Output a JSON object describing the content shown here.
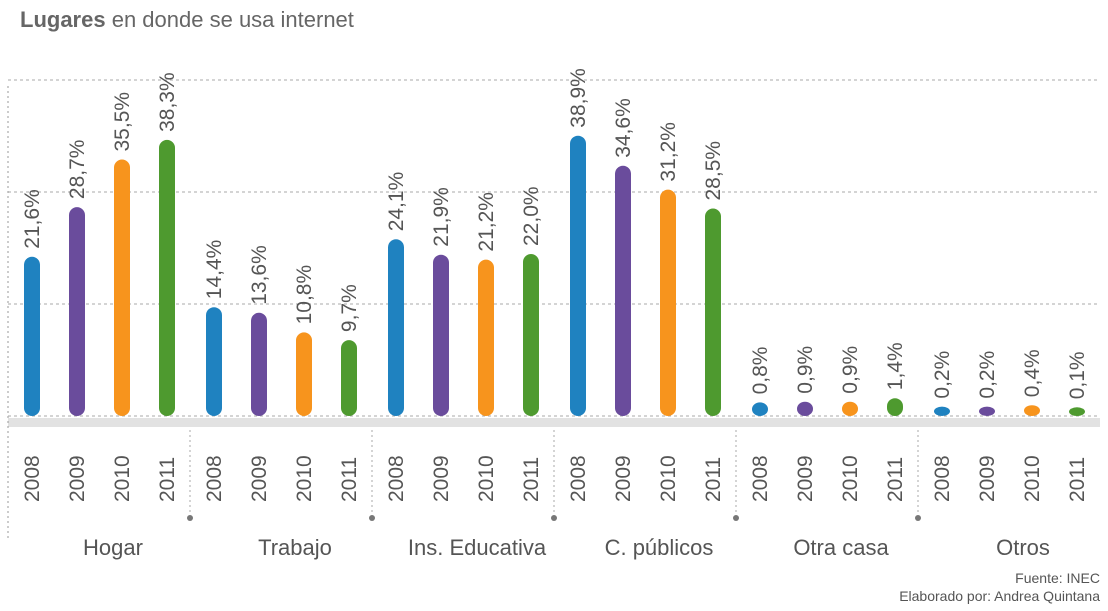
{
  "chart_data": {
    "type": "bar",
    "title_bold": "Lugares",
    "title_rest": "en donde se usa internet",
    "categories": [
      "Hogar",
      "Trabajo",
      "Ins. Educativa",
      "C. públicos",
      "Otra casa",
      "Otros"
    ],
    "series": [
      {
        "name": "2008",
        "color": "#1f82c0",
        "values": [
          21.6,
          14.4,
          24.1,
          38.9,
          0.8,
          0.2
        ],
        "value_labels": [
          "21,6%",
          "14,4%",
          "24,1%",
          "38,9%",
          "0,8%",
          "0,2%"
        ]
      },
      {
        "name": "2009",
        "color": "#6a4c9c",
        "values": [
          28.7,
          13.6,
          21.9,
          34.6,
          0.9,
          0.2
        ],
        "value_labels": [
          "28,7%",
          "13,6%",
          "21,9%",
          "34,6%",
          "0,9%",
          "0,2%"
        ]
      },
      {
        "name": "2010",
        "color": "#f7941d",
        "values": [
          35.5,
          10.8,
          21.2,
          31.2,
          0.9,
          0.4
        ],
        "value_labels": [
          "35,5%",
          "10,8%",
          "21,2%",
          "31,2%",
          "0,9%",
          "0,4%"
        ]
      },
      {
        "name": "2011",
        "color": "#4e9a2f",
        "values": [
          38.3,
          9.7,
          22.0,
          28.5,
          1.4,
          0.1
        ],
        "value_labels": [
          "38,3%",
          "9,7%",
          "22,0%",
          "28,5%",
          "1,4%",
          "0,1%"
        ]
      }
    ],
    "ylim": [
      0,
      48
    ],
    "yticks": [
      0,
      16,
      32,
      48
    ],
    "grid": true,
    "source": "Fuente: INEC",
    "author": "Elaborado por: Andrea Quintana"
  }
}
